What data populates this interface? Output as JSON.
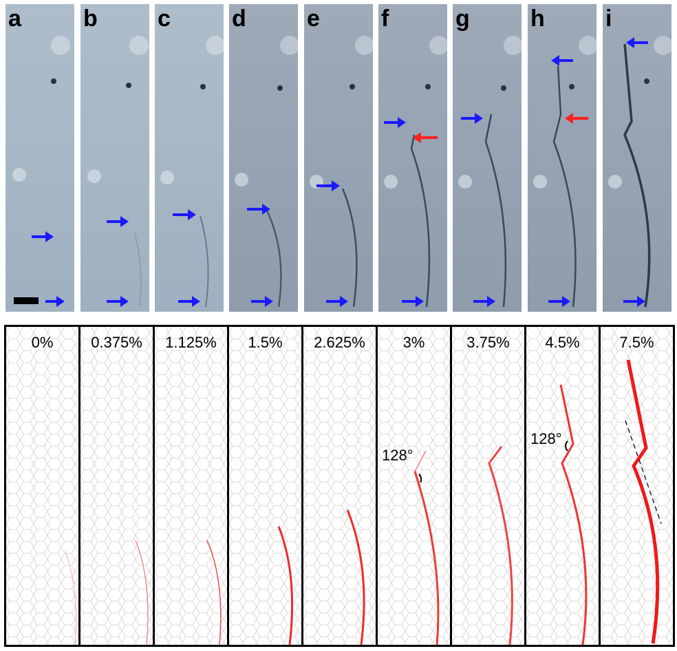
{
  "figure": {
    "panels": [
      {
        "label": "a",
        "strain": "0%"
      },
      {
        "label": "b",
        "strain": "0.375%"
      },
      {
        "label": "c",
        "strain": "1.125%"
      },
      {
        "label": "d",
        "strain": "1.5%"
      },
      {
        "label": "e",
        "strain": "2.625%"
      },
      {
        "label": "f",
        "strain": "3%"
      },
      {
        "label": "g",
        "strain": "3.75%"
      },
      {
        "label": "h",
        "strain": "4.5%"
      },
      {
        "label": "i",
        "strain": "7.5%"
      }
    ],
    "angle_annotations": {
      "panel_f": "128°",
      "panel_h": "128°"
    },
    "colors": {
      "arrow_blue": "#1a1aff",
      "arrow_red": "#ff2020",
      "crack_red": "#ee2a2a",
      "photo_bg": "#a9b8c6",
      "hex_line": "#c8c8c8"
    }
  }
}
